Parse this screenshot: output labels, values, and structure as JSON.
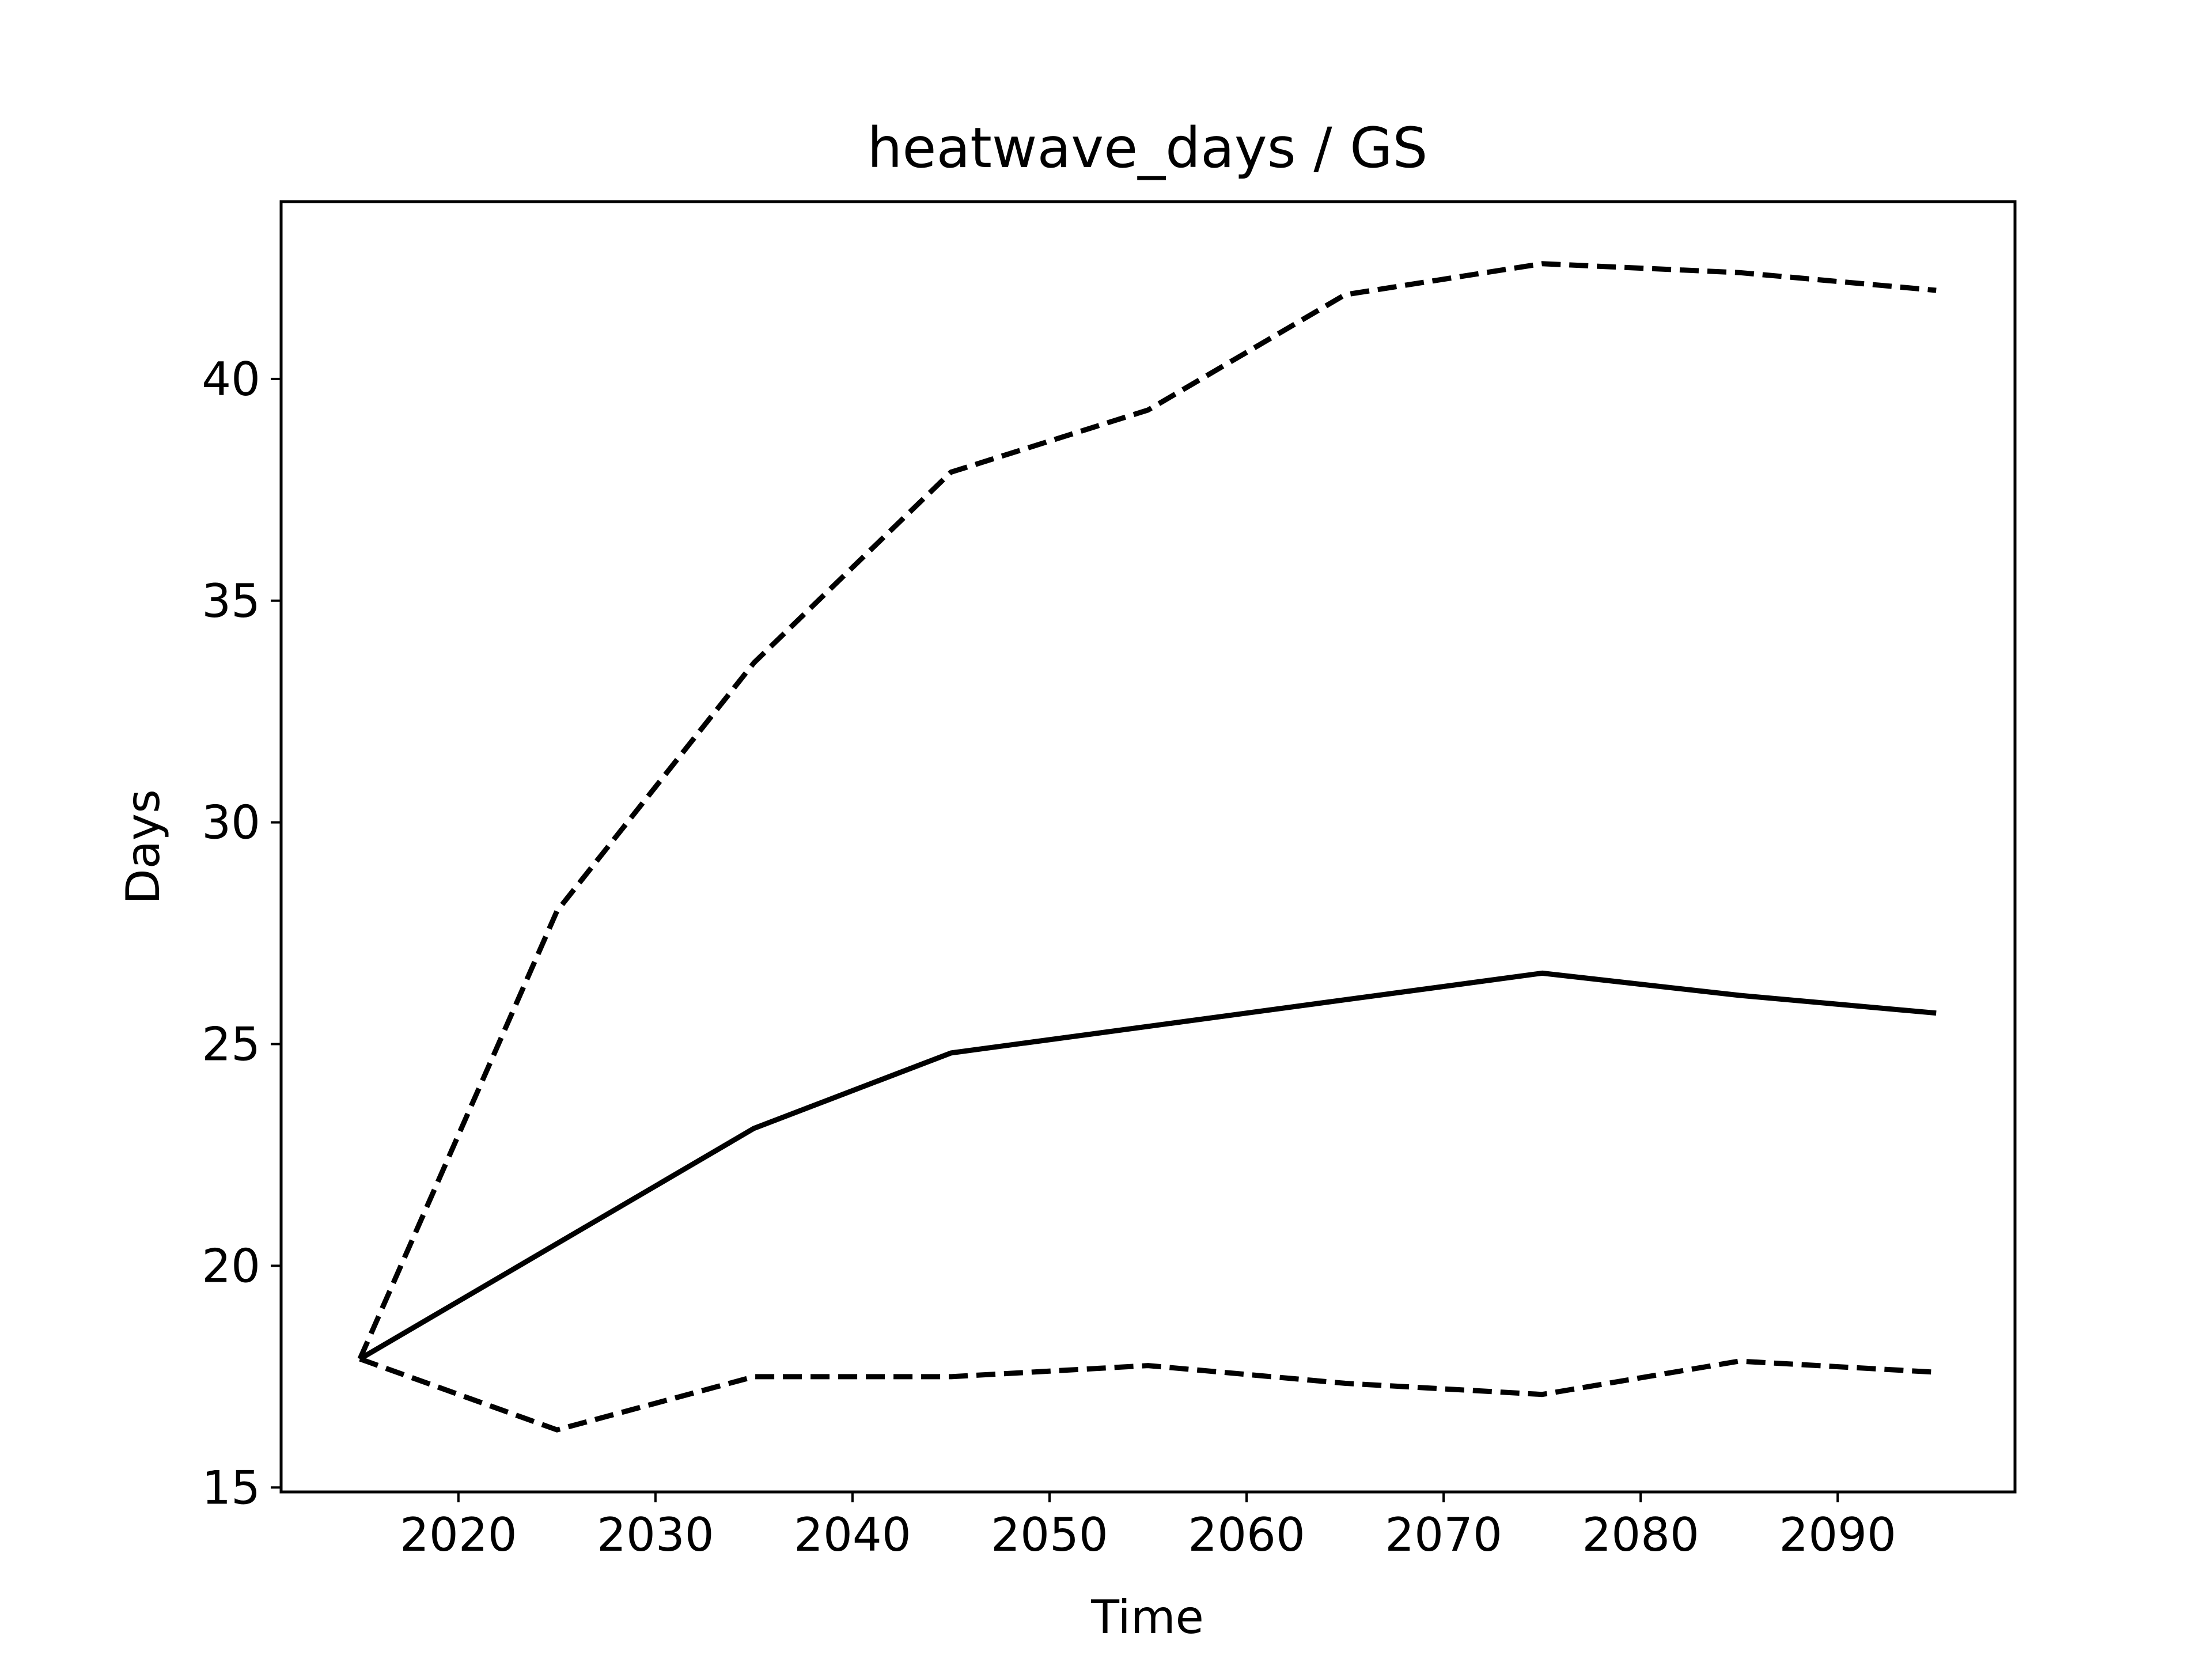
{
  "chart_data": {
    "type": "line",
    "title": "heatwave_days / GS",
    "xlabel": "Time",
    "ylabel": "Days",
    "xlim": [
      2011,
      2099
    ],
    "ylim": [
      14.9,
      44
    ],
    "grid": false,
    "xticks": [
      2020,
      2030,
      2040,
      2050,
      2060,
      2070,
      2080,
      2090
    ],
    "yticks": [
      15,
      20,
      25,
      30,
      35,
      40
    ],
    "series": [
      {
        "style": "solid",
        "x": [
          2015,
          2025,
          2035,
          2045,
          2055,
          2065,
          2075,
          2085,
          2095
        ],
        "y": [
          17.9,
          20.5,
          23.1,
          24.8,
          25.4,
          26.0,
          26.6,
          26.1,
          25.7
        ]
      },
      {
        "style": "dashed",
        "x": [
          2015,
          2025,
          2035,
          2045,
          2055,
          2065,
          2075,
          2085,
          2095
        ],
        "y": [
          17.9,
          28.0,
          33.6,
          37.9,
          39.3,
          41.9,
          42.6,
          42.4,
          42.0
        ]
      },
      {
        "style": "dashed",
        "x": [
          2015,
          2025,
          2035,
          2045,
          2055,
          2065,
          2075,
          2085,
          2095
        ],
        "y": [
          17.9,
          16.3,
          17.5,
          17.5,
          17.75,
          17.35,
          17.1,
          17.85,
          17.6
        ]
      }
    ],
    "colors": {
      "line": "#000000",
      "axes": "#000000",
      "background": "#ffffff"
    }
  }
}
